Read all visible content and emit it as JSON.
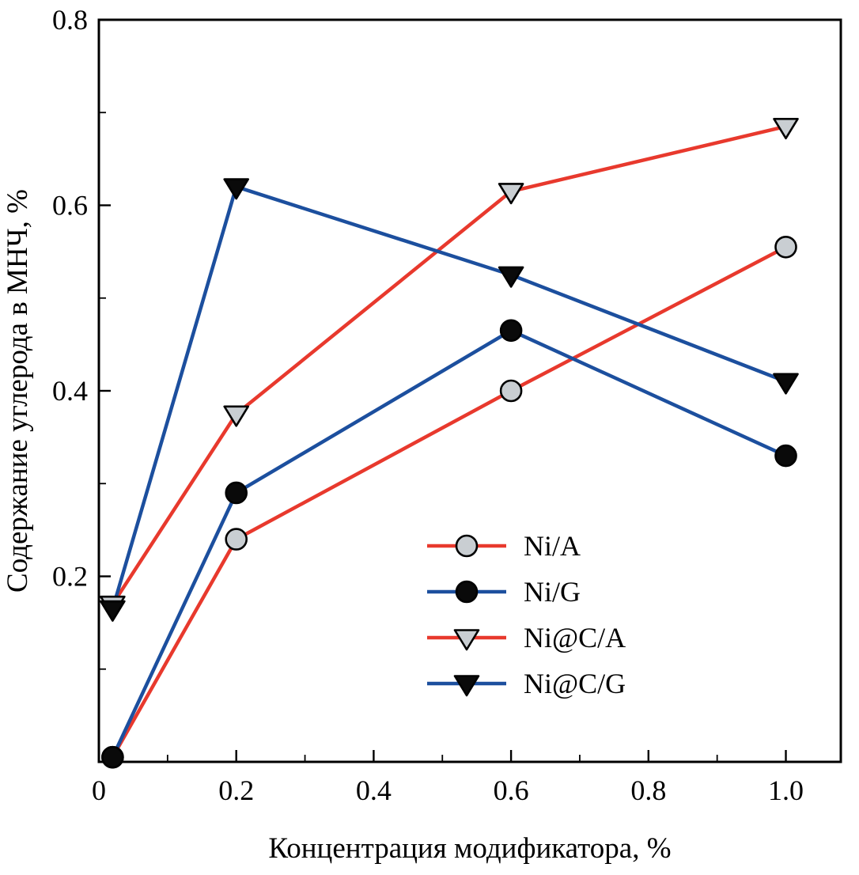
{
  "figure": {
    "background": "#ffffff",
    "frame_color": "#000000"
  },
  "chart_data": {
    "type": "line",
    "title": "",
    "xlabel": "Концентрация модификатора, %",
    "ylabel": "Содержание углерода в МНЧ, %",
    "xlim": [
      0,
      1.08
    ],
    "ylim": [
      0,
      0.8
    ],
    "x_ticks": [
      0,
      0.2,
      0.4,
      0.6,
      0.8,
      1.0
    ],
    "x_tick_labels": [
      "0",
      "0.2",
      "0.4",
      "0.6",
      "0.8",
      "1.0"
    ],
    "x_minor_ticks": [
      0.1,
      0.3,
      0.5,
      0.7,
      0.9
    ],
    "y_ticks": [
      0.2,
      0.4,
      0.6,
      0.8
    ],
    "y_tick_labels": [
      "0.2",
      "0.4",
      "0.6",
      "0.8"
    ],
    "y_minor_ticks": [
      0.1,
      0.3,
      0.5,
      0.7
    ],
    "grid": false,
    "legend_position": "inside-lower-right",
    "x": [
      0.02,
      0.2,
      0.6,
      1.0
    ],
    "series": [
      {
        "name": "Ni/A",
        "line_color": "#e8392d",
        "marker": "circle",
        "marker_fill": "#c9ced2",
        "marker_edge": "#000000",
        "values": [
          0.005,
          0.24,
          0.4,
          0.555
        ]
      },
      {
        "name": "Ni/G",
        "line_color": "#1c4f9e",
        "marker": "circle",
        "marker_fill": "#0a0a0a",
        "marker_edge": "#000000",
        "values": [
          0.005,
          0.29,
          0.465,
          0.33
        ]
      },
      {
        "name": "Ni@C/A",
        "line_color": "#e8392d",
        "marker": "triangle-down",
        "marker_fill": "#c9ced2",
        "marker_edge": "#000000",
        "values": [
          0.17,
          0.375,
          0.615,
          0.685
        ]
      },
      {
        "name": "Ni@C/G",
        "line_color": "#1c4f9e",
        "marker": "triangle-down",
        "marker_fill": "#0a0a0a",
        "marker_edge": "#000000",
        "values": [
          0.165,
          0.62,
          0.525,
          0.41
        ]
      }
    ]
  }
}
